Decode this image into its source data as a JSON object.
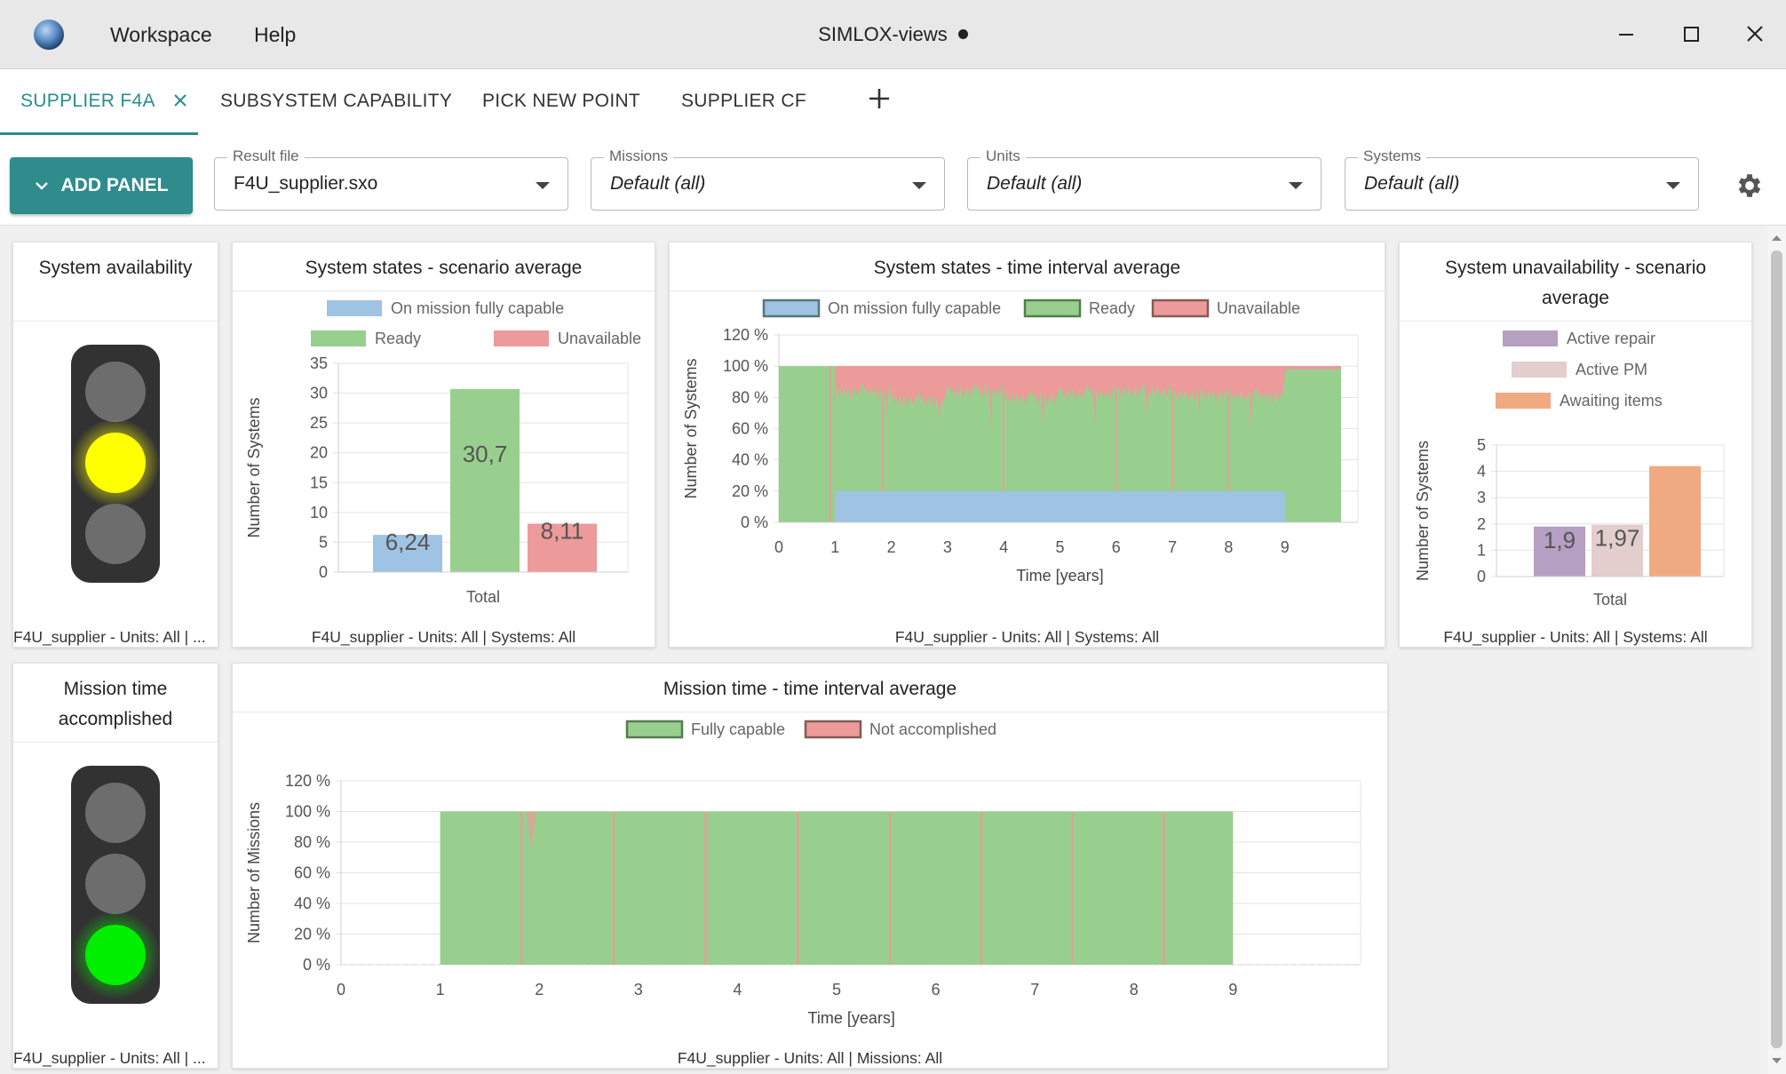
{
  "app": {
    "menu": [
      "Workspace",
      "Help"
    ],
    "title": "SIMLOX-views"
  },
  "tabs": [
    {
      "label": "SUPPLIER F4A",
      "active": true
    },
    {
      "label": "SUBSYSTEM CAPABILITY"
    },
    {
      "label": "PICK NEW POINT"
    },
    {
      "label": "SUPPLIER CF"
    }
  ],
  "toolbar": {
    "add_panel_label": "ADD PANEL",
    "fields": [
      {
        "label": "Result file",
        "value": "F4U_supplier.sxo"
      },
      {
        "label": "Missions",
        "value": "Default (all)"
      },
      {
        "label": "Units",
        "value": "Default (all)"
      },
      {
        "label": "Systems",
        "value": "Default (all)"
      }
    ]
  },
  "panels": {
    "availability": {
      "title": "System availability",
      "light": "yellow",
      "footer": "F4U_supplier - Units: All | ..."
    },
    "states_scenario": {
      "title": "System states - scenario average",
      "footer": "F4U_supplier - Units: All | Systems: All"
    },
    "states_interval": {
      "title": "System states - time interval average",
      "footer": "F4U_supplier - Units: All | Systems: All"
    },
    "unavailability": {
      "title": "System unavailability - scenario average",
      "footer": "F4U_supplier - Units: All | Systems: All"
    },
    "mission_light": {
      "title": "Mission time accomplished",
      "light": "green",
      "footer": "F4U_supplier - Units: All | ..."
    },
    "mission_interval": {
      "title": "Mission time - time interval average",
      "footer": "F4U_supplier - Units: All | Missions: All"
    }
  },
  "colors": {
    "accent": "#2f8c8c",
    "blue": "#9ec3e3",
    "green": "#98cf8e",
    "red": "#ec9a9a",
    "purple": "#b59fc2",
    "pink": "#e4cdcd",
    "orange": "#f0aa82",
    "yellow": "#ffff00",
    "light_green": "#00ee00"
  },
  "chart_data": [
    {
      "type": "bar",
      "categories": [
        "Total"
      ],
      "series": [
        {
          "name": "On mission fully capable",
          "values": [
            6.24
          ],
          "label": "6,24"
        },
        {
          "name": "Ready",
          "values": [
            30.7
          ],
          "label": "30,7"
        },
        {
          "name": "Unavailable",
          "values": [
            8.11
          ],
          "label": "8,11"
        }
      ],
      "ylabel": "Number of Systems",
      "yticks": [
        "0",
        "5",
        "10",
        "15",
        "20",
        "25",
        "30",
        "35"
      ],
      "ylim": [
        0,
        35
      ]
    },
    {
      "type": "area",
      "series": [
        {
          "name": "On mission fully capable",
          "values": [
            0,
            20,
            20,
            20,
            20,
            20,
            20,
            20,
            20,
            0
          ],
          "x": [
            0,
            1,
            2,
            3,
            4,
            5,
            6,
            7,
            8,
            9
          ]
        },
        {
          "name": "Ready",
          "values": [
            100,
            88,
            80,
            88,
            82,
            86,
            88,
            85,
            84,
            98,
            99
          ],
          "x": [
            0,
            1,
            2,
            3,
            4,
            5,
            6,
            7,
            8,
            9,
            10
          ]
        },
        {
          "name": "Unavailable",
          "values": [
            0,
            12,
            20,
            12,
            18,
            14,
            12,
            15,
            16,
            2,
            1
          ],
          "x": [
            0,
            1,
            2,
            3,
            4,
            5,
            6,
            7,
            8,
            9,
            10
          ]
        }
      ],
      "xlabel": "Time [years]",
      "ylabel": "Number of Systems",
      "xticks": [
        "0",
        "1",
        "2",
        "3",
        "4",
        "5",
        "6",
        "7",
        "8",
        "9"
      ],
      "yticks": [
        "0 %",
        "20 %",
        "40 %",
        "60 %",
        "80 %",
        "100 %",
        "120 %"
      ],
      "ylim": [
        0,
        120
      ]
    },
    {
      "type": "bar",
      "categories": [
        "Total"
      ],
      "series": [
        {
          "name": "Active repair",
          "values": [
            1.9
          ],
          "label": "1,9"
        },
        {
          "name": "Active PM",
          "values": [
            1.97
          ],
          "label": "1,97"
        },
        {
          "name": "Awaiting items",
          "values": [
            4.2
          ],
          "label": ""
        }
      ],
      "ylabel": "Number of Systems",
      "yticks": [
        "0",
        "1",
        "2",
        "3",
        "4",
        "5"
      ],
      "ylim": [
        0,
        5
      ]
    },
    {
      "type": "area",
      "series": [
        {
          "name": "Fully capable",
          "values": [
            0,
            100,
            100,
            100,
            100,
            100,
            100,
            100,
            100,
            100
          ],
          "x": [
            0,
            1,
            2,
            3,
            4,
            5,
            6,
            7,
            8,
            9
          ]
        },
        {
          "name": "Not accomplished",
          "values": [
            0,
            0,
            3,
            0,
            0,
            0,
            0,
            0,
            0,
            0
          ],
          "x": [
            0,
            1,
            2,
            3,
            4,
            5,
            6,
            7,
            8,
            9
          ]
        }
      ],
      "xlabel": "Time [years]",
      "ylabel": "Number of Missions",
      "xticks": [
        "0",
        "1",
        "2",
        "3",
        "4",
        "5",
        "6",
        "7",
        "8",
        "9"
      ],
      "yticks": [
        "0 %",
        "20 %",
        "40 %",
        "60 %",
        "80 %",
        "100 %",
        "120 %"
      ],
      "ylim": [
        0,
        120
      ]
    }
  ]
}
